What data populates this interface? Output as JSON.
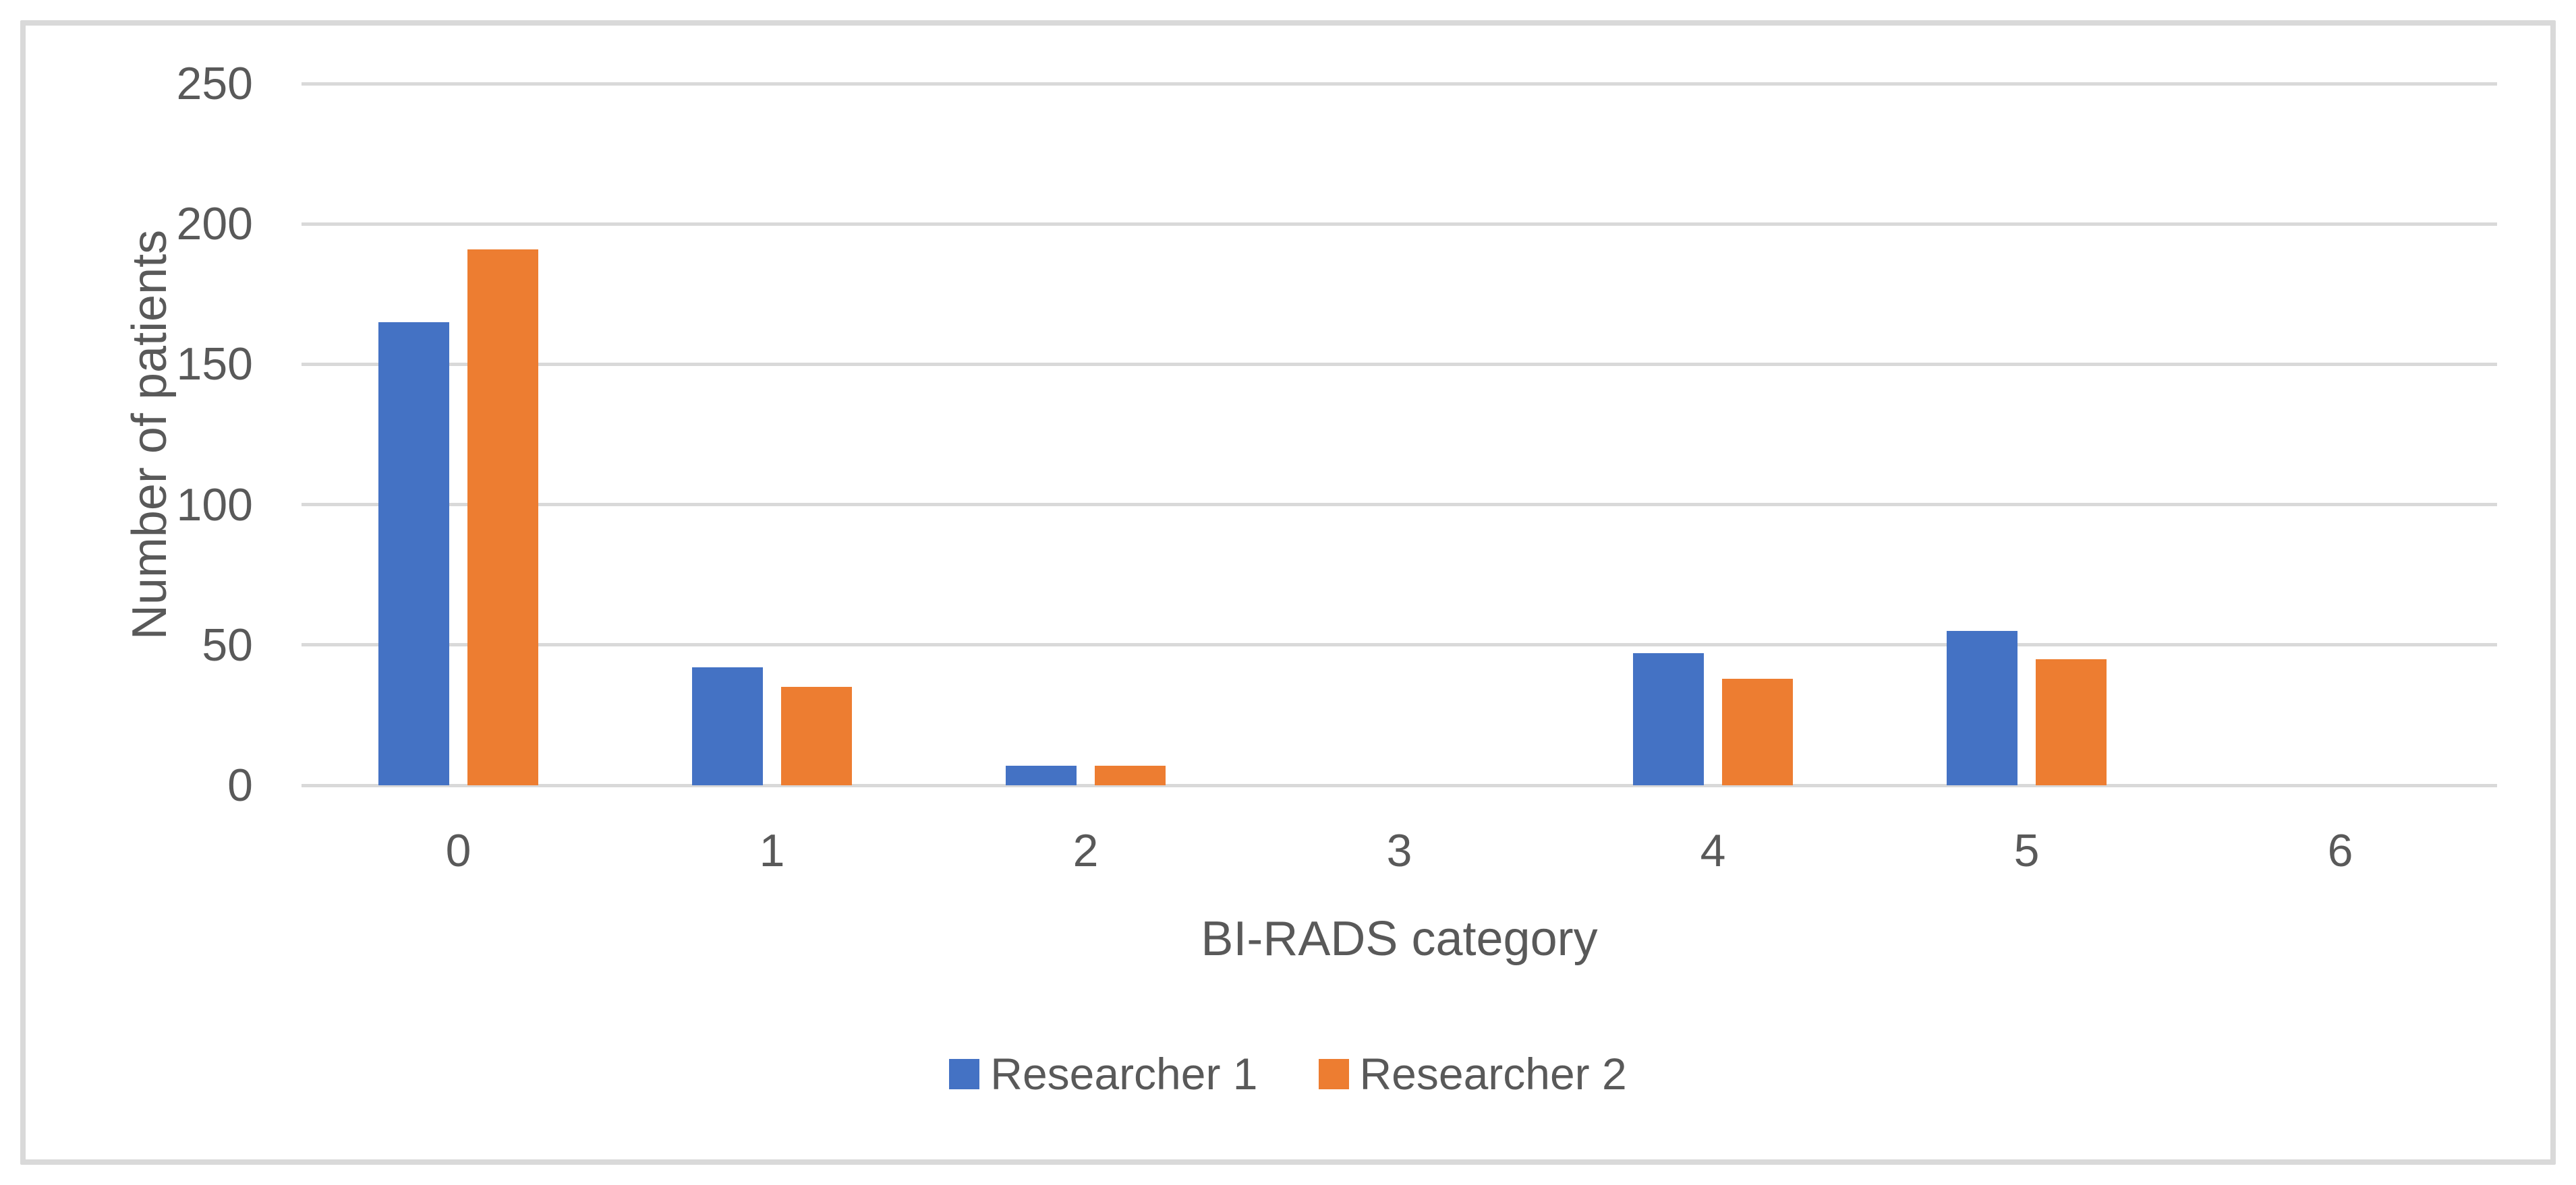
{
  "chart_data": {
    "type": "bar",
    "title": "",
    "categories": [
      "0",
      "1",
      "2",
      "3",
      "4",
      "5",
      "6"
    ],
    "series": [
      {
        "name": "Researcher 1",
        "color": "#4472C4",
        "values": [
          165,
          42,
          7,
          0,
          47,
          55,
          0
        ]
      },
      {
        "name": "Researcher 2",
        "color": "#ED7D31",
        "values": [
          191,
          35,
          7,
          0,
          38,
          45,
          0
        ]
      }
    ],
    "xlabel": "BI-RADS category",
    "ylabel": "Number of patients",
    "ylim": [
      0,
      250
    ],
    "ytick_step": 50,
    "yticks": [
      "0",
      "50",
      "100",
      "150",
      "200",
      "250"
    ],
    "grid": true,
    "legend_position": "bottom",
    "colors": {
      "gridline": "#D9D9D9",
      "axis_line": "#D9D9D9",
      "figure_border": "#D9D9D9",
      "text": "#595959",
      "background": "#FFFFFF"
    }
  }
}
